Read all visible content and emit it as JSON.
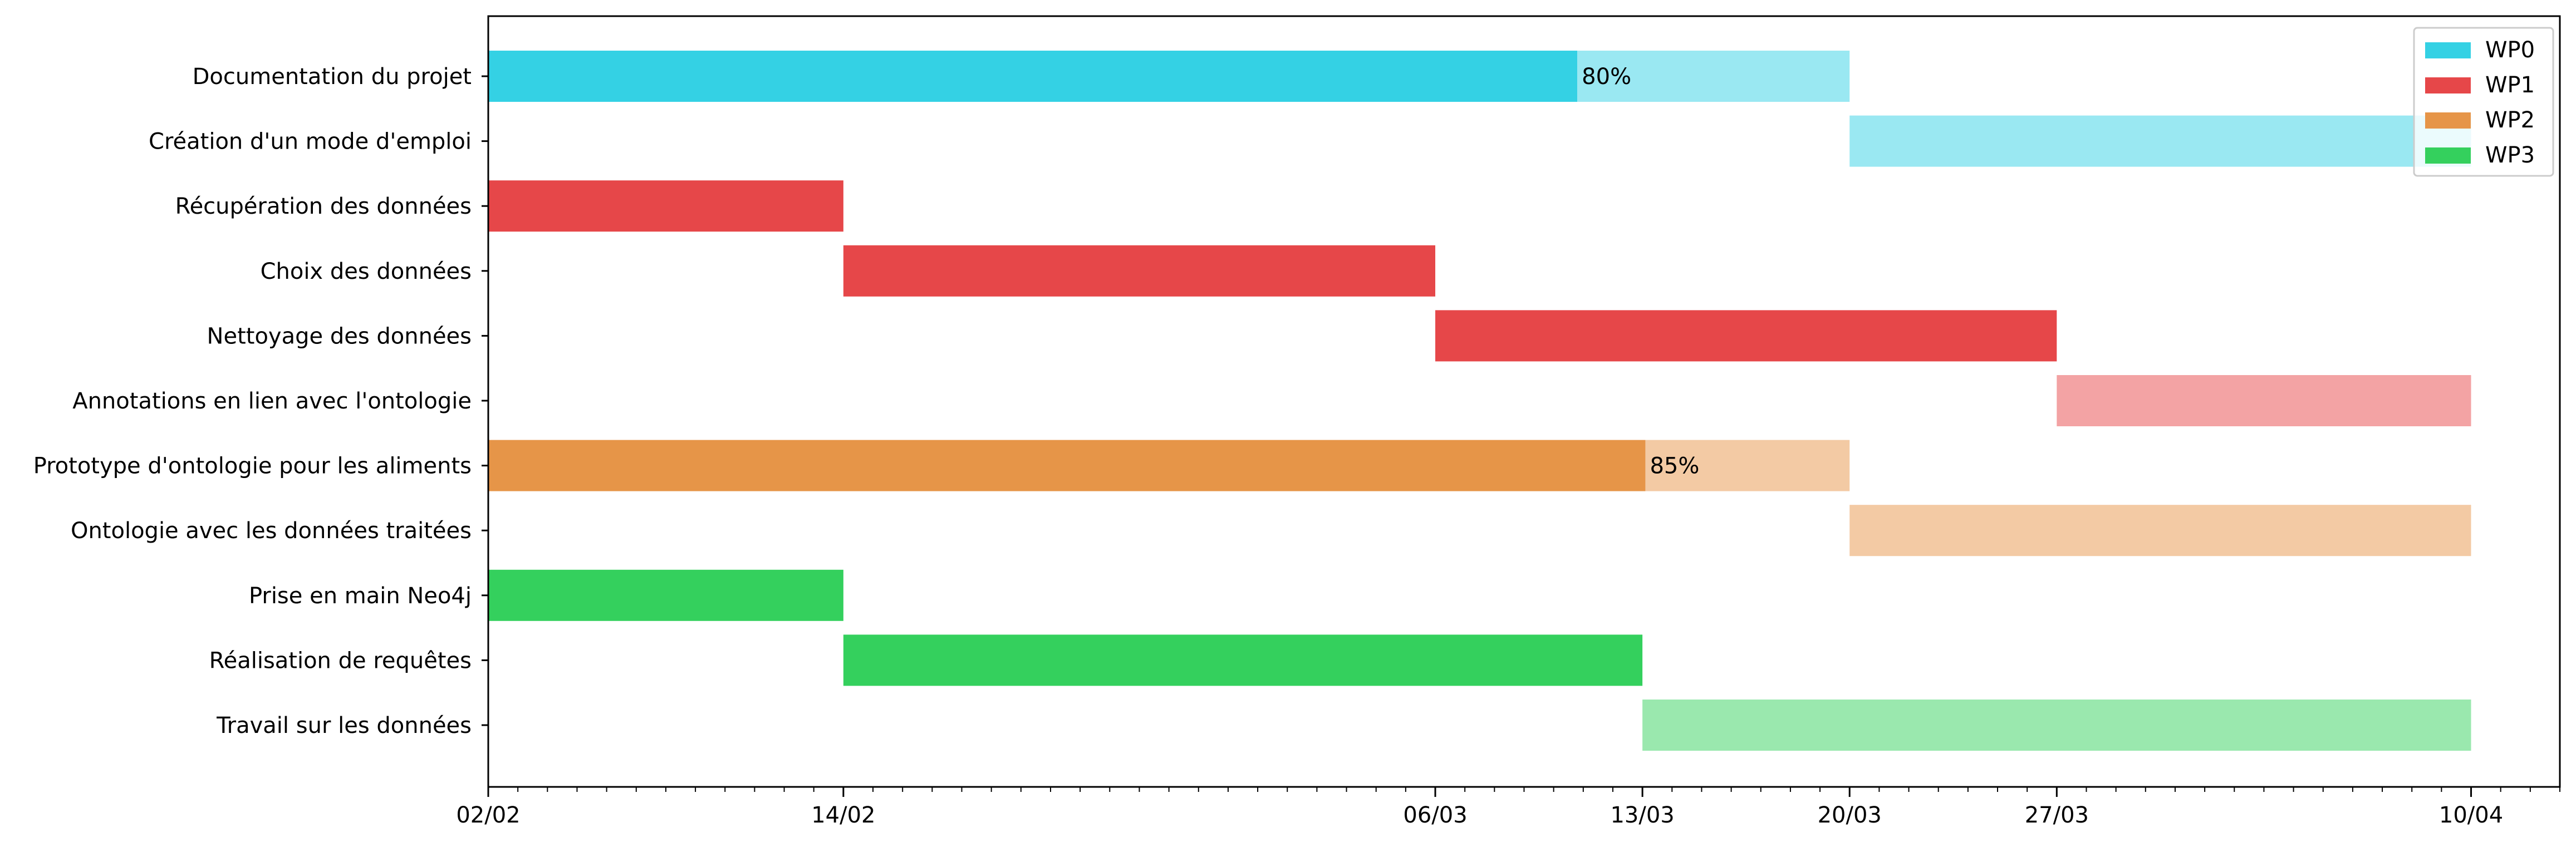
{
  "chart_data": {
    "type": "gantt",
    "x_axis": {
      "ticks": [
        "02/02",
        "14/02",
        "06/03",
        "13/03",
        "20/03",
        "27/03",
        "10/04"
      ],
      "range": [
        "02/02",
        "13/04"
      ]
    },
    "legend": {
      "position": "top-right",
      "entries": [
        {
          "name": "WP0",
          "color": "#34d1e4"
        },
        {
          "name": "WP1",
          "color": "#e64749"
        },
        {
          "name": "WP2",
          "color": "#e69548"
        },
        {
          "name": "WP3",
          "color": "#34d05d"
        }
      ]
    },
    "tasks": [
      {
        "name": "Documentation du projet",
        "wp": "WP0",
        "start": "02/02",
        "end": "20/03",
        "completion_label": "80%",
        "completion": 0.8
      },
      {
        "name": "Création d'un mode d'emploi",
        "wp": "WP0",
        "start": "20/03",
        "end": "10/04",
        "completion": 0
      },
      {
        "name": "Récupération des données",
        "wp": "WP1",
        "start": "02/02",
        "end": "14/02",
        "completion": 1
      },
      {
        "name": "Choix des données",
        "wp": "WP1",
        "start": "14/02",
        "end": "06/03",
        "completion": 1
      },
      {
        "name": "Nettoyage des données",
        "wp": "WP1",
        "start": "06/03",
        "end": "27/03",
        "completion": 1
      },
      {
        "name": "Annotations en lien avec l'ontologie",
        "wp": "WP1",
        "start": "27/03",
        "end": "10/04",
        "completion": 0
      },
      {
        "name": "Prototype d'ontologie pour les aliments",
        "wp": "WP2",
        "start": "02/02",
        "end": "20/03",
        "completion_label": "85%",
        "completion": 0.85
      },
      {
        "name": "Ontologie avec les données traitées",
        "wp": "WP2",
        "start": "20/03",
        "end": "10/04",
        "completion": 0
      },
      {
        "name": "Prise en main Neo4j",
        "wp": "WP3",
        "start": "02/02",
        "end": "14/02",
        "completion": 1
      },
      {
        "name": "Réalisation de requêtes",
        "wp": "WP3",
        "start": "14/02",
        "end": "13/03",
        "completion": 1
      },
      {
        "name": "Travail sur les données",
        "wp": "WP3",
        "start": "13/03",
        "end": "10/04",
        "completion": 0
      }
    ],
    "grid": false
  }
}
